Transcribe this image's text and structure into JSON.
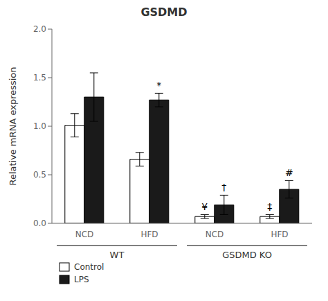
{
  "chart_data": {
    "type": "bar",
    "title": "GSDMD",
    "ylabel": "Relative mRNA expression",
    "categories": [
      "NCD",
      "HFD",
      "NCD",
      "HFD"
    ],
    "groups": [
      {
        "label": "WT",
        "category_indices": [
          0,
          1
        ]
      },
      {
        "label": "GSDMD KO",
        "category_indices": [
          2,
          3
        ]
      }
    ],
    "series": [
      {
        "name": "Control",
        "color": "#ffffff",
        "values": [
          1.01,
          0.66,
          0.07,
          0.07
        ],
        "errors": [
          0.12,
          0.07,
          0.02,
          0.02
        ]
      },
      {
        "name": "LPS",
        "color": "#1a1a1a",
        "values": [
          1.3,
          1.27,
          0.19,
          0.35
        ],
        "errors": [
          0.25,
          0.07,
          0.1,
          0.09
        ]
      }
    ],
    "annotations": [
      {
        "text": "*",
        "series": "LPS",
        "category_index": 1
      },
      {
        "text": "¥",
        "series": "Control",
        "category_index": 2
      },
      {
        "text": "†",
        "series": "LPS",
        "category_index": 2
      },
      {
        "text": "‡",
        "series": "Control",
        "category_index": 3
      },
      {
        "text": "#",
        "series": "LPS",
        "category_index": 3
      }
    ],
    "ylim": [
      0,
      2.0
    ],
    "yticks": [
      {
        "value": 0,
        "label": "0.0"
      },
      0.5,
      {
        "value": 1,
        "label": "1.0"
      },
      1.5,
      {
        "value": 2,
        "label": "2.0"
      }
    ],
    "legend": "lower left",
    "grid": false
  }
}
